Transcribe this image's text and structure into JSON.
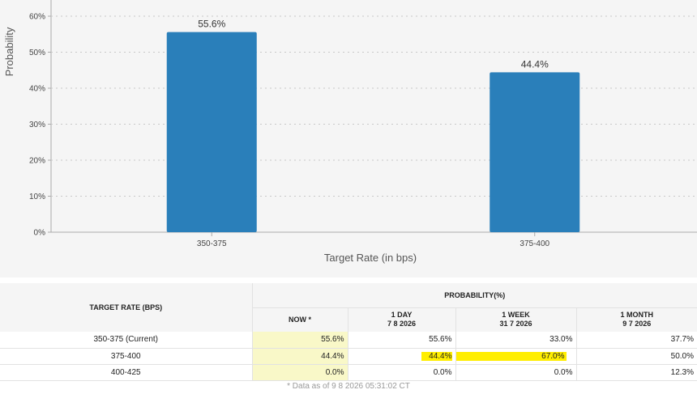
{
  "chart_data": {
    "type": "bar",
    "categories": [
      "350-375",
      "375-400"
    ],
    "values": [
      55.6,
      44.4
    ],
    "data_labels": [
      "55.6%",
      "44.4%"
    ],
    "xlabel": "Target Rate (in bps)",
    "ylabel": "Probability",
    "ylim": [
      0,
      60
    ],
    "yticks": [
      "0%",
      "10%",
      "20%",
      "30%",
      "40%",
      "50%",
      "60%"
    ],
    "grid": true,
    "color": "#2a7fba"
  },
  "table": {
    "target_rate_header": "TARGET RATE (BPS)",
    "probability_header": "PROBABILITY(%)",
    "columns": [
      {
        "line1": "NOW *",
        "line2": ""
      },
      {
        "line1": "1 DAY",
        "line2": "7 8 2026"
      },
      {
        "line1": "1 WEEK",
        "line2": "31 7 2026"
      },
      {
        "line1": "1 MONTH",
        "line2": "9 7 2026"
      }
    ],
    "rows": [
      {
        "rate": "350-375 (Current)",
        "values": [
          "55.6%",
          "55.6%",
          "33.0%",
          "37.7%"
        ]
      },
      {
        "rate": "375-400",
        "values": [
          "44.4%",
          "44.4%",
          "67.0%",
          "50.0%"
        ]
      },
      {
        "rate": "400-425",
        "values": [
          "0.0%",
          "0.0%",
          "0.0%",
          "12.3%"
        ]
      }
    ],
    "highlight_color": "#ffee00"
  },
  "footnote": "* Data as of 9 8 2026 05:31:02 CT"
}
